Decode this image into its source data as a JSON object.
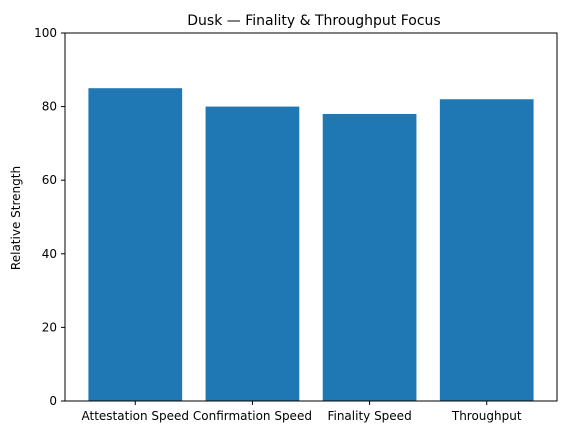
{
  "chart_data": {
    "type": "bar",
    "title": "Dusk — Finality & Throughput Focus",
    "xlabel": "",
    "ylabel": "Relative Strength",
    "categories": [
      "Attestation Speed",
      "Confirmation Speed",
      "Finality Speed",
      "Throughput"
    ],
    "values": [
      85,
      80,
      78,
      82
    ],
    "ylim": [
      0,
      100
    ],
    "yticks": [
      0,
      20,
      40,
      60,
      80,
      100
    ],
    "grid": false,
    "bar_color": "#1f77b4"
  }
}
